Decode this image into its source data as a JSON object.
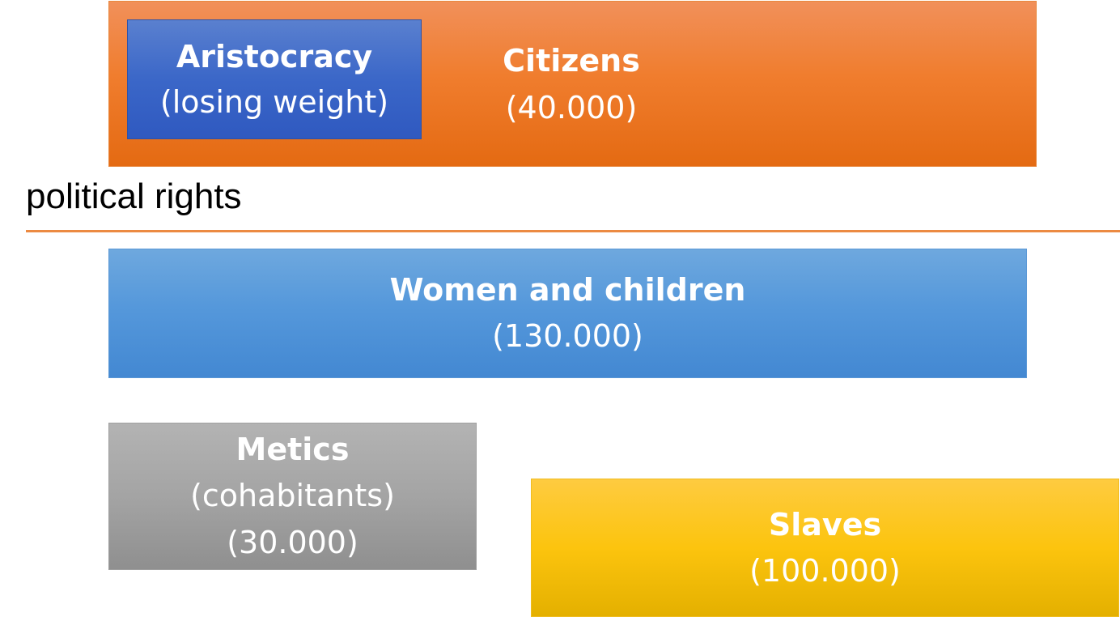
{
  "groups": {
    "citizens": {
      "title": "Citizens",
      "count": "(40.000)"
    },
    "aristocracy": {
      "title": "Aristocracy",
      "note": "(losing weight)"
    },
    "women_children": {
      "title": "Women and children",
      "count": "(130.000)"
    },
    "metics": {
      "title": "Metics",
      "note": "(cohabitants)",
      "count": "(30.000)"
    },
    "slaves": {
      "title": "Slaves",
      "count": "(100.000)"
    }
  },
  "divider": {
    "label": "political rights"
  },
  "colors": {
    "citizens": "#f07d2e",
    "aristocracy": "#3b67c8",
    "women_children": "#5598db",
    "metics": "#a4a4a4",
    "slaves": "#fcc40e",
    "divider_line": "#ec8a42"
  }
}
